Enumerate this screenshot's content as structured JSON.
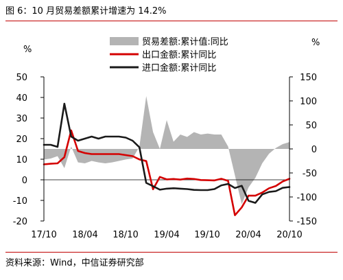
{
  "title": "图 6：10 月贸易差额累计增速为 14.2%",
  "source": "资料来源：Wind，中信证券研究部",
  "chart_data": {
    "type": "bar+line",
    "title": "图 6：10 月贸易差额累计增速为 14.2%",
    "left_unit": "%",
    "right_unit": "%",
    "left_axis": {
      "min": -20,
      "max": 50,
      "ticks": [
        50,
        40,
        30,
        20,
        10,
        0,
        -10,
        -20
      ]
    },
    "right_axis": {
      "min": -150,
      "max": 150,
      "ticks": [
        150,
        100,
        50,
        0,
        -50,
        -100,
        -150
      ]
    },
    "x_tick_labels": [
      "17/10",
      "18/04",
      "18/10",
      "19/04",
      "19/10",
      "20/04",
      "20/10"
    ],
    "legend": {
      "placement": "top-center"
    },
    "months": [
      "17/10",
      "17/11",
      "17/12",
      "18/01",
      "18/02",
      "18/03",
      "18/04",
      "18/05",
      "18/06",
      "18/07",
      "18/08",
      "18/09",
      "18/10",
      "18/11",
      "18/12",
      "19/01",
      "19/02",
      "19/03",
      "19/04",
      "19/05",
      "19/06",
      "19/07",
      "19/08",
      "19/09",
      "19/10",
      "19/11",
      "19/12",
      "20/01",
      "20/02",
      "20/03",
      "20/04",
      "20/05",
      "20/06",
      "20/07",
      "20/08",
      "20/09",
      "20/10"
    ],
    "series": [
      {
        "name": "贸易差额:累计值:同比",
        "type": "area",
        "axis": "right",
        "color": "#b4b4b4",
        "values": [
          -22,
          -20,
          -15,
          -40,
          5,
          -28,
          -30,
          -25,
          -28,
          -30,
          -28,
          -25,
          -22,
          -20,
          5,
          110,
          35,
          0,
          60,
          15,
          30,
          25,
          35,
          30,
          32,
          30,
          30,
          5,
          -55,
          -115,
          -80,
          -60,
          -30,
          -10,
          2,
          10,
          14.2
        ]
      },
      {
        "name": "出口金额:累计同比",
        "type": "line",
        "axis": "left",
        "color": "#d40000",
        "values": [
          7.5,
          7.8,
          8,
          11,
          24,
          14,
          13,
          12.5,
          12.5,
          12.5,
          12.5,
          12.5,
          12,
          11.5,
          9.9,
          9.1,
          -4.6,
          1.4,
          0.2,
          0.4,
          0.1,
          0.6,
          0.4,
          -0.1,
          -0.2,
          -0.3,
          0.5,
          -0.5,
          -17.2,
          -13.4,
          -7.7,
          -7.7,
          -6.2,
          -4.1,
          -3,
          -0.8,
          0.5
        ]
      },
      {
        "name": "进口金额:累计同比",
        "type": "line",
        "axis": "left",
        "color": "#1a1a1a",
        "values": [
          17,
          17,
          16,
          37,
          21,
          19,
          20,
          21,
          20,
          21,
          21,
          21,
          20.5,
          19,
          15.8,
          -1.5,
          -3.1,
          -4.8,
          -4.3,
          -4.1,
          -4.3,
          -4.5,
          -4.9,
          -5,
          -5,
          -4.5,
          -2.7,
          -2,
          -4,
          -2.9,
          -10.2,
          -11.2,
          -7.1,
          -5.9,
          -5.5,
          -3.9,
          -3.5
        ]
      }
    ]
  }
}
